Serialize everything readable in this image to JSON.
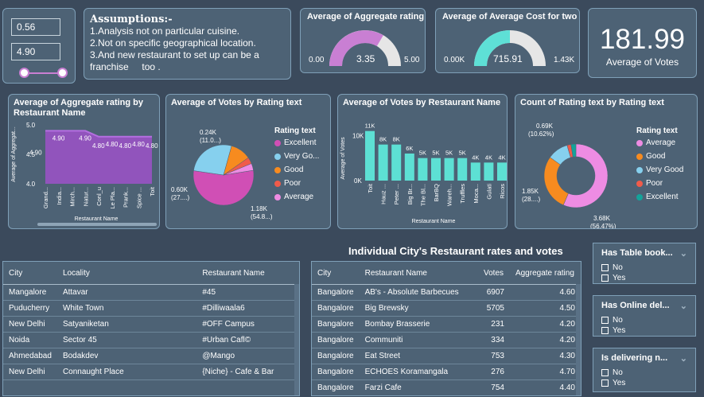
{
  "slider": {
    "min": "0.56",
    "max": "4.90"
  },
  "assumptions": {
    "title": "Assumptions:-",
    "lines": [
      "1.Analysis not on particular cuisine.",
      "2.Not on specific geographical location.",
      "3.And new restaurant to set up can be a franchise     too ."
    ]
  },
  "gauge1": {
    "title": "Average of Aggregate rating",
    "value": "3.35",
    "min": "0.00",
    "max": "5.00",
    "fraction": 0.67,
    "color": "#c97fd3"
  },
  "gauge2": {
    "title": "Average of Average Cost for two",
    "value": "715.91",
    "min": "0.00K",
    "max": "1.43K",
    "fraction": 0.5,
    "color": "#5ee0d6"
  },
  "kpi": {
    "value": "181.99",
    "label": "Average of Votes"
  },
  "chart1": {
    "title": "Average of Aggregate rating by Restaurant Name",
    "xlabel": "Restaurant Name",
    "ylabel": "Average of Aggregat...",
    "yticks": [
      "5.0",
      "4.5",
      "4.0"
    ]
  },
  "chart2": {
    "title": "Average of Votes by Rating text",
    "legend_title": "Rating text",
    "labels": {
      "a": "0.24K",
      "a2": "(11.0...)",
      "b": "0.60K",
      "b2": "(27....)",
      "c": "1.18K",
      "c2": "(54.8...)"
    }
  },
  "chart3": {
    "title": "Average of Votes by Restaurant Name",
    "xlabel": "Restaurant Name",
    "ylabel": "Average of Votes",
    "yticks": [
      "10K",
      "0K"
    ]
  },
  "chart4": {
    "title": "Count of Rating text by Rating text",
    "legend_title": "Rating text",
    "labels": {
      "a": "0.69K",
      "a2": "(10.62%)",
      "b": "1.85K",
      "b2": "(28....)",
      "c": "3.68K",
      "c2": "(56.47%)"
    }
  },
  "chart_data": [
    {
      "type": "area",
      "categories": [
        "Grand...",
        "India...",
        "Mirch...",
        "Natur...",
        "Conl_u",
        "Le Pla...",
        "Prank...",
        "Spice ...",
        "Toit"
      ],
      "values": [
        4.9,
        4.9,
        4.9,
        4.9,
        4.8,
        4.8,
        4.8,
        4.8,
        4.8
      ],
      "ylim": [
        4.0,
        5.0
      ],
      "color": "#9d52c9"
    },
    {
      "type": "pie",
      "slices": [
        {
          "name": "Excellent",
          "value": 54.8,
          "color": "#d04fb5"
        },
        {
          "name": "Very Go...",
          "value": 27.0,
          "color": "#86d0ee"
        },
        {
          "name": "Good",
          "value": 11.0,
          "color": "#f78b1f"
        },
        {
          "name": "Poor",
          "value": 3.5,
          "color": "#f05b4a"
        },
        {
          "name": "Average",
          "value": 3.7,
          "color": "#ee8ce3"
        }
      ]
    },
    {
      "type": "bar",
      "categories": [
        "Toit",
        "Hauz ...",
        "Peter ...",
        "Big Br...",
        "The Bl...",
        "BarBQ",
        "Wareh...",
        "Truffles",
        "Moca...",
        "Gulati",
        "Ricos"
      ],
      "values": [
        11,
        8,
        8,
        6,
        5,
        5,
        5,
        5,
        4,
        4,
        4
      ],
      "value_labels": [
        "11K",
        "8K",
        "8K",
        "6K",
        "5K",
        "5K",
        "5K",
        "5K",
        "4K",
        "4K",
        "4K"
      ],
      "ylim": [
        0,
        12
      ],
      "color": "#5de0d4"
    },
    {
      "type": "pie",
      "donut": true,
      "slices": [
        {
          "name": "Average",
          "value": 56.47,
          "color": "#ee8ce3"
        },
        {
          "name": "Good",
          "value": 28.4,
          "color": "#f78b1f"
        },
        {
          "name": "Very Good",
          "value": 10.62,
          "color": "#86d0ee"
        },
        {
          "name": "Poor",
          "value": 2.0,
          "color": "#f05b4a"
        },
        {
          "name": "Excellent",
          "value": 2.5,
          "color": "#14a39a"
        }
      ]
    }
  ],
  "section_title": "Individual City's  Restaurant rates and votes",
  "table1": {
    "headers": [
      "City",
      "Locality",
      "Restaurant Name"
    ],
    "rows": [
      [
        "Mangalore",
        "Attavar",
        "#45"
      ],
      [
        "Puducherry",
        "White Town",
        "#Dilliwaala6"
      ],
      [
        "New Delhi",
        "Satyaniketan",
        "#OFF Campus"
      ],
      [
        "Noida",
        "Sector 45",
        "#Urban Cafl©"
      ],
      [
        "Ahmedabad",
        "Bodakdev",
        "@Mango"
      ],
      [
        "New Delhi",
        "Connaught Place",
        "{Niche} - Cafe & Bar"
      ]
    ]
  },
  "table2": {
    "headers": [
      "City",
      "Restaurant Name",
      "Votes",
      "Aggregate rating"
    ],
    "rows": [
      [
        "Bangalore",
        "AB's - Absolute Barbecues",
        "6907",
        "4.60"
      ],
      [
        "Bangalore",
        "Big Brewsky",
        "5705",
        "4.50"
      ],
      [
        "Bangalore",
        "Bombay Brasserie",
        "231",
        "4.20"
      ],
      [
        "Bangalore",
        "Communiti",
        "334",
        "4.20"
      ],
      [
        "Bangalore",
        "Eat Street",
        "753",
        "4.30"
      ],
      [
        "Bangalore",
        "ECHOES Koramangala",
        "276",
        "4.70"
      ],
      [
        "Bangalore",
        "Farzi Cafe",
        "754",
        "4.40"
      ]
    ]
  },
  "filters": [
    {
      "title": "Has Table book...",
      "options": [
        "No",
        "Yes"
      ]
    },
    {
      "title": "Has Online del...",
      "options": [
        "No",
        "Yes"
      ]
    },
    {
      "title": "Is delivering n...",
      "options": [
        "No",
        "Yes"
      ]
    }
  ]
}
